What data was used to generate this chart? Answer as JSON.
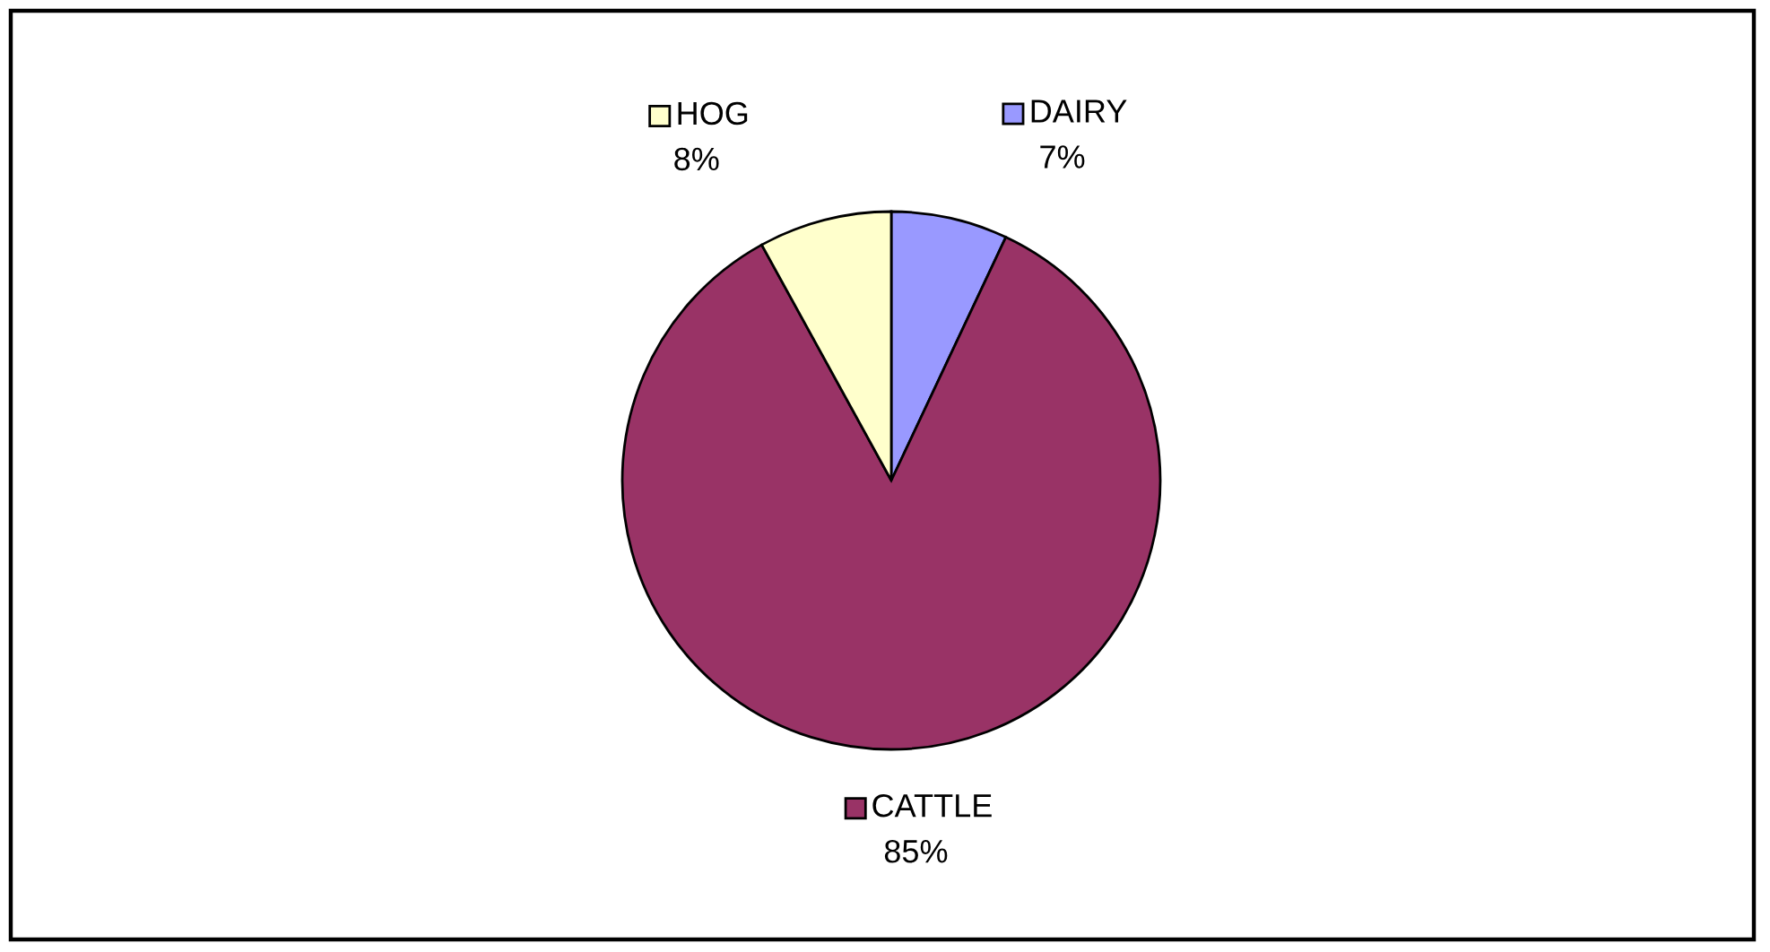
{
  "chart_data": {
    "type": "pie",
    "categories": [
      "DAIRY",
      "CATTLE",
      "HOG"
    ],
    "values": [
      7,
      85,
      8
    ],
    "colors": [
      "#9999ff",
      "#993366",
      "#ffffcc"
    ],
    "value_labels": [
      "7%",
      "85%",
      "8%"
    ],
    "legend": "center"
  }
}
